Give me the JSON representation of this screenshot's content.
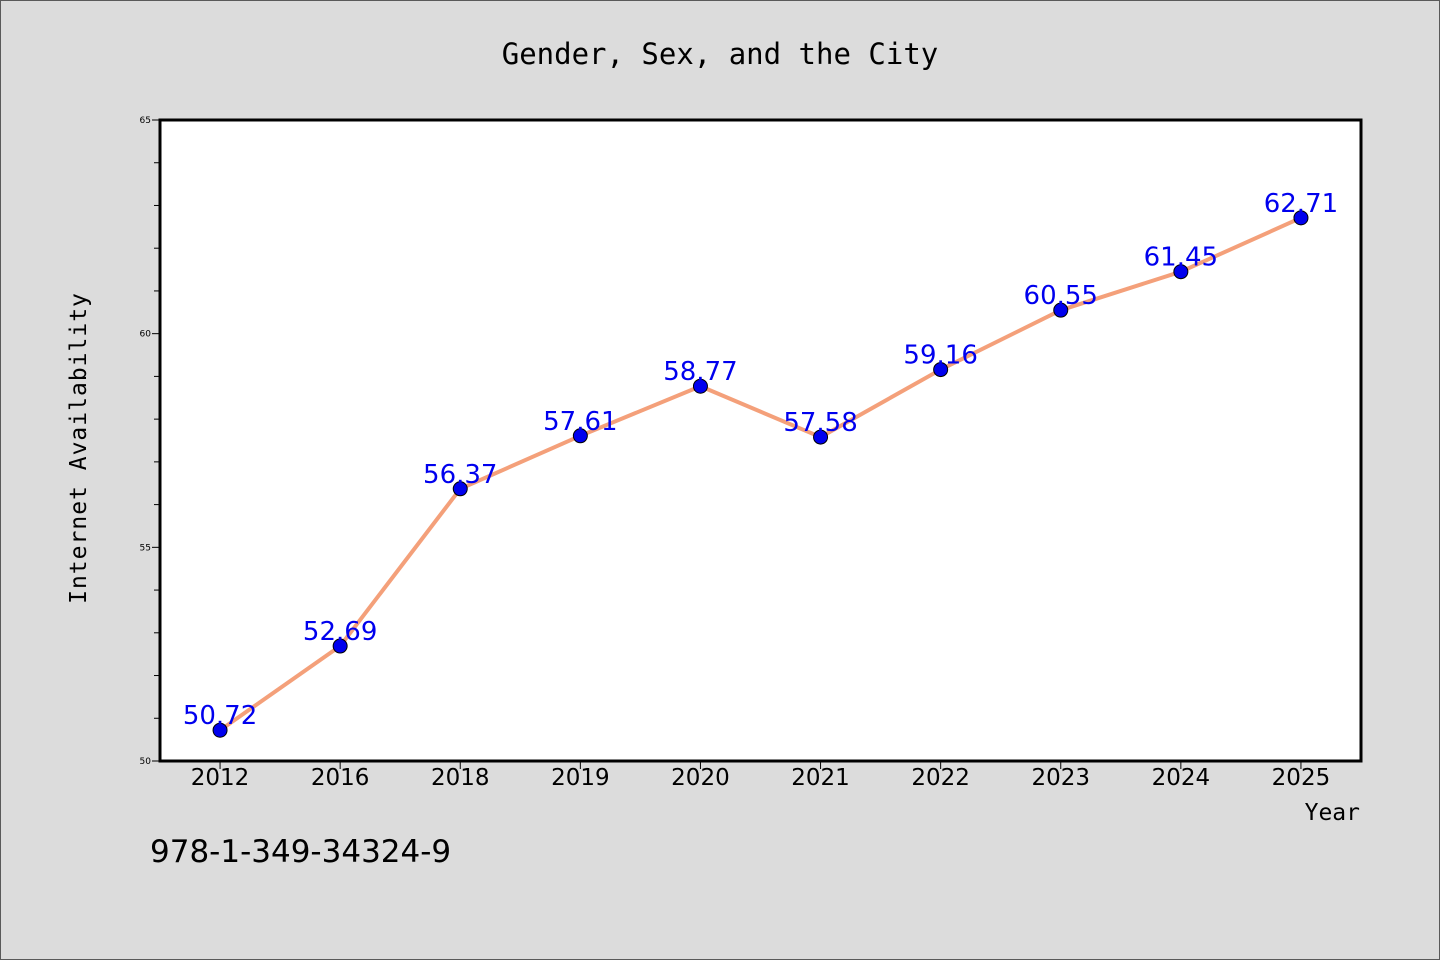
{
  "chart_data": {
    "type": "line",
    "title": "Gender, Sex, and the City",
    "xlabel": "Year",
    "ylabel": "Internet Availability",
    "categories": [
      "2012",
      "2016",
      "2018",
      "2019",
      "2020",
      "2021",
      "2022",
      "2023",
      "2024",
      "2025"
    ],
    "values": [
      50.72,
      52.69,
      56.37,
      57.61,
      58.77,
      57.58,
      59.16,
      60.55,
      61.45,
      62.71
    ],
    "data_labels": [
      "50.72",
      "52.69",
      "56.37",
      "57.61",
      "58.77",
      "57.58",
      "59.16",
      "60.55",
      "61.45",
      "62.71"
    ],
    "ylim": [
      50,
      65
    ],
    "y_ticks": [
      "50",
      "55",
      "60",
      "65"
    ],
    "grid": false,
    "legend": "none",
    "colors": {
      "line": "#f4a07a",
      "marker": "#0000ee",
      "label": "#0000ee",
      "plot_bg": "#ffffff",
      "page_bg": "#dcdcdc"
    }
  },
  "footer": {
    "code": "978-1-349-34324-9"
  }
}
